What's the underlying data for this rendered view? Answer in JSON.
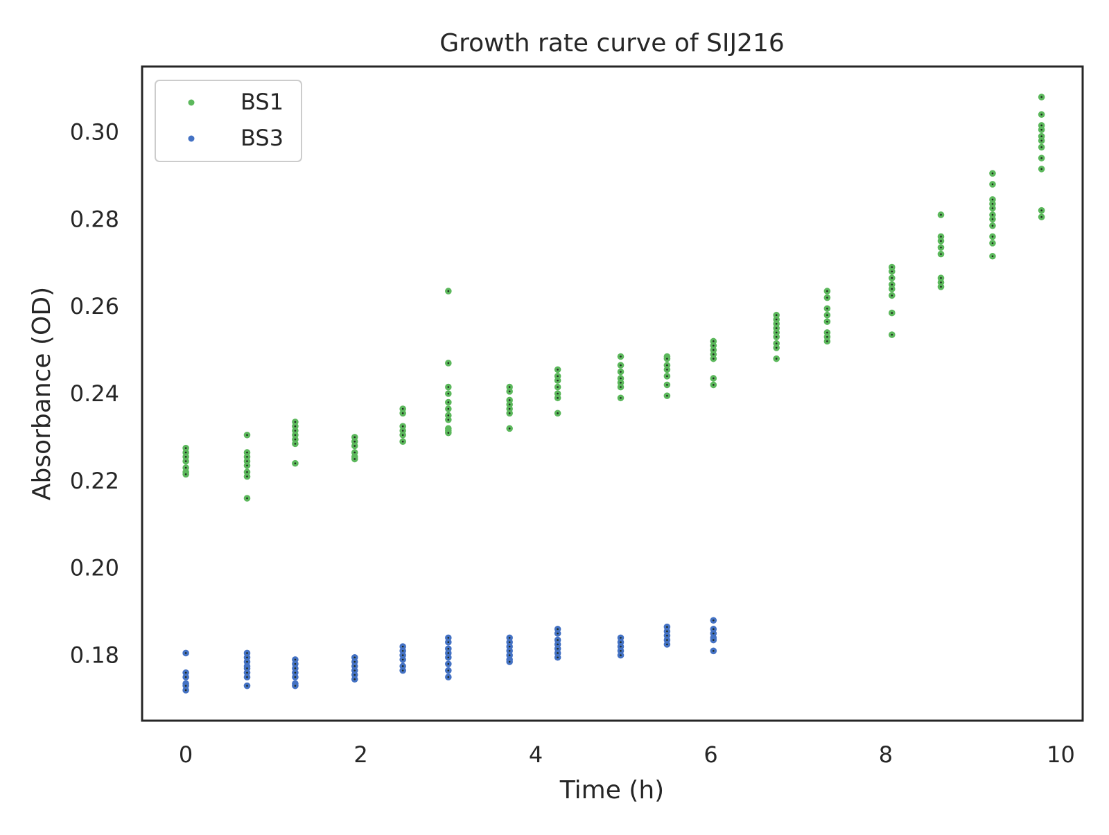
{
  "chart_data": {
    "type": "scatter",
    "title": "Growth rate curve of SIJ216",
    "xlabel": "Time (h)",
    "ylabel": "Absorbance (OD)",
    "xlim": [
      -0.5,
      10.25
    ],
    "ylim": [
      0.165,
      0.315
    ],
    "xticks": [
      0,
      2,
      4,
      6,
      8,
      10
    ],
    "xtick_labels": [
      "0",
      "2",
      "4",
      "6",
      "8",
      "10"
    ],
    "yticks": [
      0.18,
      0.2,
      0.22,
      0.24,
      0.26,
      0.28,
      0.3
    ],
    "ytick_labels": [
      "0.18",
      "0.20",
      "0.22",
      "0.24",
      "0.26",
      "0.28",
      "0.30"
    ],
    "grid": false,
    "legend": "upper-left",
    "series": [
      {
        "name": "BS1",
        "color": "#5cb85c",
        "points": [
          [
            0,
            0.2275
          ],
          [
            0,
            0.2265
          ],
          [
            0,
            0.2255
          ],
          [
            0,
            0.2245
          ],
          [
            0,
            0.223
          ],
          [
            0,
            0.222
          ],
          [
            0,
            0.2215
          ],
          [
            0.7,
            0.2305
          ],
          [
            0.7,
            0.2265
          ],
          [
            0.7,
            0.2255
          ],
          [
            0.7,
            0.2245
          ],
          [
            0.7,
            0.2235
          ],
          [
            0.7,
            0.222
          ],
          [
            0.7,
            0.221
          ],
          [
            0.7,
            0.216
          ],
          [
            1.25,
            0.2335
          ],
          [
            1.25,
            0.2325
          ],
          [
            1.25,
            0.2315
          ],
          [
            1.25,
            0.2305
          ],
          [
            1.25,
            0.2295
          ],
          [
            1.25,
            0.2285
          ],
          [
            1.25,
            0.224
          ],
          [
            1.93,
            0.23
          ],
          [
            1.93,
            0.229
          ],
          [
            1.93,
            0.228
          ],
          [
            1.93,
            0.2265
          ],
          [
            1.93,
            0.2255
          ],
          [
            1.93,
            0.225
          ],
          [
            2.48,
            0.2365
          ],
          [
            2.48,
            0.2355
          ],
          [
            2.48,
            0.2325
          ],
          [
            2.48,
            0.2315
          ],
          [
            2.48,
            0.2305
          ],
          [
            2.48,
            0.229
          ],
          [
            3.0,
            0.2635
          ],
          [
            3.0,
            0.247
          ],
          [
            3.0,
            0.2415
          ],
          [
            3.0,
            0.24
          ],
          [
            3.0,
            0.238
          ],
          [
            3.0,
            0.2365
          ],
          [
            3.0,
            0.235
          ],
          [
            3.0,
            0.234
          ],
          [
            3.0,
            0.232
          ],
          [
            3.0,
            0.2315
          ],
          [
            3.0,
            0.231
          ],
          [
            3.7,
            0.2415
          ],
          [
            3.7,
            0.2405
          ],
          [
            3.7,
            0.2385
          ],
          [
            3.7,
            0.2375
          ],
          [
            3.7,
            0.2365
          ],
          [
            3.7,
            0.2355
          ],
          [
            3.7,
            0.232
          ],
          [
            4.25,
            0.2455
          ],
          [
            4.25,
            0.244
          ],
          [
            4.25,
            0.243
          ],
          [
            4.25,
            0.2415
          ],
          [
            4.25,
            0.24
          ],
          [
            4.25,
            0.239
          ],
          [
            4.25,
            0.2355
          ],
          [
            4.97,
            0.2485
          ],
          [
            4.97,
            0.2465
          ],
          [
            4.97,
            0.245
          ],
          [
            4.97,
            0.2435
          ],
          [
            4.97,
            0.2425
          ],
          [
            4.97,
            0.2415
          ],
          [
            4.97,
            0.239
          ],
          [
            5.5,
            0.2485
          ],
          [
            5.5,
            0.248
          ],
          [
            5.5,
            0.2465
          ],
          [
            5.5,
            0.2455
          ],
          [
            5.5,
            0.244
          ],
          [
            5.5,
            0.242
          ],
          [
            5.5,
            0.2395
          ],
          [
            6.03,
            0.252
          ],
          [
            6.03,
            0.251
          ],
          [
            6.03,
            0.25
          ],
          [
            6.03,
            0.249
          ],
          [
            6.03,
            0.248
          ],
          [
            6.03,
            0.2435
          ],
          [
            6.03,
            0.242
          ],
          [
            6.75,
            0.258
          ],
          [
            6.75,
            0.257
          ],
          [
            6.75,
            0.256
          ],
          [
            6.75,
            0.255
          ],
          [
            6.75,
            0.254
          ],
          [
            6.75,
            0.253
          ],
          [
            6.75,
            0.2515
          ],
          [
            6.75,
            0.2505
          ],
          [
            6.75,
            0.248
          ],
          [
            7.33,
            0.2635
          ],
          [
            7.33,
            0.262
          ],
          [
            7.33,
            0.2595
          ],
          [
            7.33,
            0.258
          ],
          [
            7.33,
            0.2565
          ],
          [
            7.33,
            0.254
          ],
          [
            7.33,
            0.253
          ],
          [
            7.33,
            0.252
          ],
          [
            8.07,
            0.269
          ],
          [
            8.07,
            0.268
          ],
          [
            8.07,
            0.2665
          ],
          [
            8.07,
            0.265
          ],
          [
            8.07,
            0.264
          ],
          [
            8.07,
            0.2625
          ],
          [
            8.07,
            0.2585
          ],
          [
            8.07,
            0.2535
          ],
          [
            8.63,
            0.281
          ],
          [
            8.63,
            0.276
          ],
          [
            8.63,
            0.275
          ],
          [
            8.63,
            0.2735
          ],
          [
            8.63,
            0.272
          ],
          [
            8.63,
            0.2665
          ],
          [
            8.63,
            0.2655
          ],
          [
            8.63,
            0.2645
          ],
          [
            9.22,
            0.2905
          ],
          [
            9.22,
            0.288
          ],
          [
            9.22,
            0.2845
          ],
          [
            9.22,
            0.2835
          ],
          [
            9.22,
            0.2825
          ],
          [
            9.22,
            0.281
          ],
          [
            9.22,
            0.28
          ],
          [
            9.22,
            0.2785
          ],
          [
            9.22,
            0.276
          ],
          [
            9.22,
            0.2745
          ],
          [
            9.22,
            0.2715
          ],
          [
            9.78,
            0.308
          ],
          [
            9.78,
            0.304
          ],
          [
            9.78,
            0.3015
          ],
          [
            9.78,
            0.3005
          ],
          [
            9.78,
            0.299
          ],
          [
            9.78,
            0.298
          ],
          [
            9.78,
            0.2965
          ],
          [
            9.78,
            0.294
          ],
          [
            9.78,
            0.2915
          ],
          [
            9.78,
            0.282
          ],
          [
            9.78,
            0.2805
          ]
        ]
      },
      {
        "name": "BS3",
        "color": "#4472c4",
        "points": [
          [
            0,
            0.1805
          ],
          [
            0,
            0.176
          ],
          [
            0,
            0.175
          ],
          [
            0,
            0.1735
          ],
          [
            0,
            0.173
          ],
          [
            0,
            0.172
          ],
          [
            0.7,
            0.1805
          ],
          [
            0.7,
            0.1795
          ],
          [
            0.7,
            0.1785
          ],
          [
            0.7,
            0.1775
          ],
          [
            0.7,
            0.177
          ],
          [
            0.7,
            0.176
          ],
          [
            0.7,
            0.175
          ],
          [
            0.7,
            0.173
          ],
          [
            1.25,
            0.179
          ],
          [
            1.25,
            0.178
          ],
          [
            1.25,
            0.177
          ],
          [
            1.25,
            0.176
          ],
          [
            1.25,
            0.175
          ],
          [
            1.25,
            0.1735
          ],
          [
            1.25,
            0.173
          ],
          [
            1.93,
            0.1795
          ],
          [
            1.93,
            0.1785
          ],
          [
            1.93,
            0.1775
          ],
          [
            1.93,
            0.1765
          ],
          [
            1.93,
            0.1755
          ],
          [
            1.93,
            0.1745
          ],
          [
            2.48,
            0.182
          ],
          [
            2.48,
            0.181
          ],
          [
            2.48,
            0.18
          ],
          [
            2.48,
            0.179
          ],
          [
            2.48,
            0.1775
          ],
          [
            2.48,
            0.1765
          ],
          [
            3.0,
            0.184
          ],
          [
            3.0,
            0.183
          ],
          [
            3.0,
            0.1815
          ],
          [
            3.0,
            0.1805
          ],
          [
            3.0,
            0.1795
          ],
          [
            3.0,
            0.178
          ],
          [
            3.0,
            0.1765
          ],
          [
            3.0,
            0.175
          ],
          [
            3.7,
            0.184
          ],
          [
            3.7,
            0.183
          ],
          [
            3.7,
            0.182
          ],
          [
            3.7,
            0.181
          ],
          [
            3.7,
            0.18
          ],
          [
            3.7,
            0.179
          ],
          [
            3.7,
            0.1785
          ],
          [
            4.25,
            0.186
          ],
          [
            4.25,
            0.185
          ],
          [
            4.25,
            0.1835
          ],
          [
            4.25,
            0.1825
          ],
          [
            4.25,
            0.1815
          ],
          [
            4.25,
            0.1805
          ],
          [
            4.25,
            0.1795
          ],
          [
            4.97,
            0.184
          ],
          [
            4.97,
            0.183
          ],
          [
            4.97,
            0.182
          ],
          [
            4.97,
            0.181
          ],
          [
            4.97,
            0.18
          ],
          [
            5.5,
            0.1865
          ],
          [
            5.5,
            0.1855
          ],
          [
            5.5,
            0.1845
          ],
          [
            5.5,
            0.1835
          ],
          [
            5.5,
            0.1825
          ],
          [
            6.03,
            0.188
          ],
          [
            6.03,
            0.186
          ],
          [
            6.03,
            0.185
          ],
          [
            6.03,
            0.184
          ],
          [
            6.03,
            0.1835
          ],
          [
            6.03,
            0.181
          ]
        ]
      }
    ]
  }
}
